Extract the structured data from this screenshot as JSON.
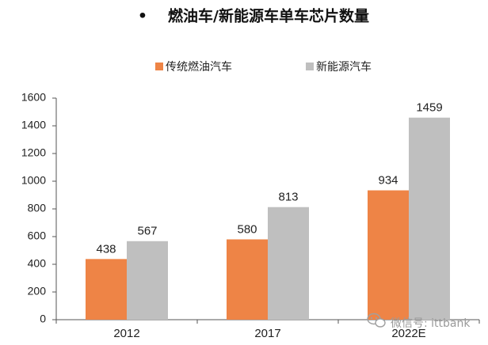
{
  "chart_data": {
    "type": "bar",
    "title": "燃油车/新能源车单车芯片数量",
    "title_bullet": "•",
    "categories": [
      "2012",
      "2017",
      "2022E"
    ],
    "series": [
      {
        "name": "传统燃油汽车",
        "color": "#EE8446",
        "values": [
          438,
          580,
          934
        ]
      },
      {
        "name": "新能源汽车",
        "color": "#BFBFBF",
        "values": [
          567,
          813,
          1459
        ]
      }
    ],
    "ylim": [
      0,
      1600
    ],
    "yticks": [
      0,
      200,
      400,
      600,
      800,
      1000,
      1200,
      1400,
      1600
    ],
    "legend_position": "top-center",
    "grid": false,
    "xlabel": "",
    "ylabel": ""
  },
  "watermark": {
    "text": "微信号: ittbank",
    "icon": "wechat-icon"
  }
}
